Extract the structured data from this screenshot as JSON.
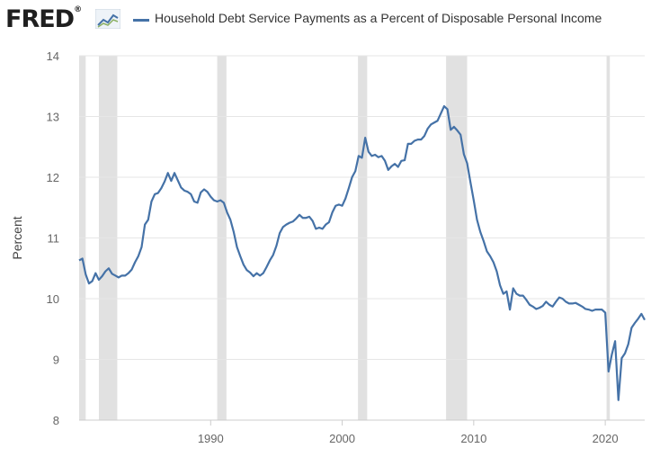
{
  "brand": {
    "logo_text": "FRED",
    "registered": "®",
    "logo_icon": "fred-chart-icon"
  },
  "legend": {
    "series_name": "Household Debt Service Payments as a Percent of Disposable Personal Income",
    "color": "#4572a7"
  },
  "chart_data": {
    "type": "line",
    "title": "",
    "xlabel": "",
    "ylabel": "Percent",
    "xlim": [
      1980.0,
      2023.0
    ],
    "ylim": [
      8,
      14
    ],
    "yticks": [
      8,
      9,
      10,
      11,
      12,
      13,
      14
    ],
    "xticks": [
      1990,
      2000,
      2010,
      2020
    ],
    "xtick_labels": [
      "1990",
      "2000",
      "2010",
      "2020"
    ],
    "ytick_labels": [
      "8",
      "9",
      "10",
      "11",
      "12",
      "13",
      "14"
    ],
    "grid": "horizontal",
    "recession_color": "#e1e1e1",
    "recessions": [
      [
        1980.0,
        1980.5
      ],
      [
        1981.5,
        1982.9
      ],
      [
        1990.5,
        1991.2
      ],
      [
        2001.2,
        2001.9
      ],
      [
        2007.9,
        2009.5
      ],
      [
        2020.1,
        2020.35
      ]
    ],
    "series": [
      {
        "name": "Household Debt Service Payments as a Percent of Disposable Personal Income",
        "color": "#4572a7",
        "x": [
          1980.0,
          1980.25,
          1980.5,
          1980.75,
          1981.0,
          1981.25,
          1981.5,
          1981.75,
          1982.0,
          1982.25,
          1982.5,
          1982.75,
          1983.0,
          1983.25,
          1983.5,
          1983.75,
          1984.0,
          1984.25,
          1984.5,
          1984.75,
          1985.0,
          1985.25,
          1985.5,
          1985.75,
          1986.0,
          1986.25,
          1986.5,
          1986.75,
          1987.0,
          1987.25,
          1987.5,
          1987.75,
          1988.0,
          1988.25,
          1988.5,
          1988.75,
          1989.0,
          1989.25,
          1989.5,
          1989.75,
          1990.0,
          1990.25,
          1990.5,
          1990.75,
          1991.0,
          1991.25,
          1991.5,
          1991.75,
          1992.0,
          1992.25,
          1992.5,
          1992.75,
          1993.0,
          1993.25,
          1993.5,
          1993.75,
          1994.0,
          1994.25,
          1994.5,
          1994.75,
          1995.0,
          1995.25,
          1995.5,
          1995.75,
          1996.0,
          1996.25,
          1996.5,
          1996.75,
          1997.0,
          1997.25,
          1997.5,
          1997.75,
          1998.0,
          1998.25,
          1998.5,
          1998.75,
          1999.0,
          1999.25,
          1999.5,
          1999.75,
          2000.0,
          2000.25,
          2000.5,
          2000.75,
          2001.0,
          2001.25,
          2001.5,
          2001.75,
          2002.0,
          2002.25,
          2002.5,
          2002.75,
          2003.0,
          2003.25,
          2003.5,
          2003.75,
          2004.0,
          2004.25,
          2004.5,
          2004.75,
          2005.0,
          2005.25,
          2005.5,
          2005.75,
          2006.0,
          2006.25,
          2006.5,
          2006.75,
          2007.0,
          2007.25,
          2007.5,
          2007.75,
          2008.0,
          2008.25,
          2008.5,
          2008.75,
          2009.0,
          2009.25,
          2009.5,
          2009.75,
          2010.0,
          2010.25,
          2010.5,
          2010.75,
          2011.0,
          2011.25,
          2011.5,
          2011.75,
          2012.0,
          2012.25,
          2012.5,
          2012.75,
          2013.0,
          2013.25,
          2013.5,
          2013.75,
          2014.0,
          2014.25,
          2014.5,
          2014.75,
          2015.0,
          2015.25,
          2015.5,
          2015.75,
          2016.0,
          2016.25,
          2016.5,
          2016.75,
          2017.0,
          2017.25,
          2017.5,
          2017.75,
          2018.0,
          2018.25,
          2018.5,
          2018.75,
          2019.0,
          2019.25,
          2019.5,
          2019.75,
          2020.0,
          2020.25,
          2020.5,
          2020.75,
          2021.0,
          2021.25,
          2021.5,
          2021.75,
          2022.0,
          2022.25,
          2022.5,
          2022.75,
          2023.0
        ],
        "values": [
          10.63,
          10.66,
          10.4,
          10.25,
          10.29,
          10.42,
          10.31,
          10.37,
          10.45,
          10.5,
          10.41,
          10.38,
          10.35,
          10.38,
          10.38,
          10.42,
          10.48,
          10.6,
          10.7,
          10.85,
          11.22,
          11.3,
          11.6,
          11.72,
          11.74,
          11.82,
          11.93,
          12.07,
          11.94,
          12.07,
          11.95,
          11.83,
          11.78,
          11.76,
          11.72,
          11.6,
          11.58,
          11.75,
          11.8,
          11.76,
          11.68,
          11.62,
          11.6,
          11.62,
          11.58,
          11.42,
          11.3,
          11.1,
          10.85,
          10.7,
          10.56,
          10.47,
          10.43,
          10.37,
          10.42,
          10.38,
          10.42,
          10.52,
          10.63,
          10.72,
          10.87,
          11.08,
          11.18,
          11.22,
          11.25,
          11.27,
          11.32,
          11.38,
          11.33,
          11.33,
          11.35,
          11.28,
          11.15,
          11.17,
          11.15,
          11.22,
          11.26,
          11.42,
          11.53,
          11.55,
          11.53,
          11.65,
          11.82,
          12.0,
          12.1,
          12.35,
          12.32,
          12.65,
          12.42,
          12.35,
          12.37,
          12.33,
          12.35,
          12.27,
          12.12,
          12.18,
          12.22,
          12.17,
          12.27,
          12.28,
          12.55,
          12.55,
          12.6,
          12.62,
          12.62,
          12.68,
          12.8,
          12.87,
          12.9,
          12.93,
          13.05,
          13.17,
          13.12,
          12.78,
          12.83,
          12.77,
          12.7,
          12.38,
          12.23,
          11.92,
          11.62,
          11.3,
          11.1,
          10.95,
          10.78,
          10.7,
          10.6,
          10.45,
          10.22,
          10.08,
          10.12,
          9.82,
          10.17,
          10.08,
          10.05,
          10.05,
          9.98,
          9.9,
          9.87,
          9.83,
          9.85,
          9.88,
          9.95,
          9.9,
          9.87,
          9.95,
          10.02,
          10.0,
          9.95,
          9.92,
          9.92,
          9.93,
          9.9,
          9.87,
          9.83,
          9.82,
          9.8,
          9.82,
          9.82,
          9.82,
          9.77,
          8.8,
          9.08,
          9.3,
          8.33,
          9.02,
          9.1,
          9.25,
          9.52,
          9.6,
          9.67,
          9.75,
          9.65
        ]
      }
    ]
  }
}
